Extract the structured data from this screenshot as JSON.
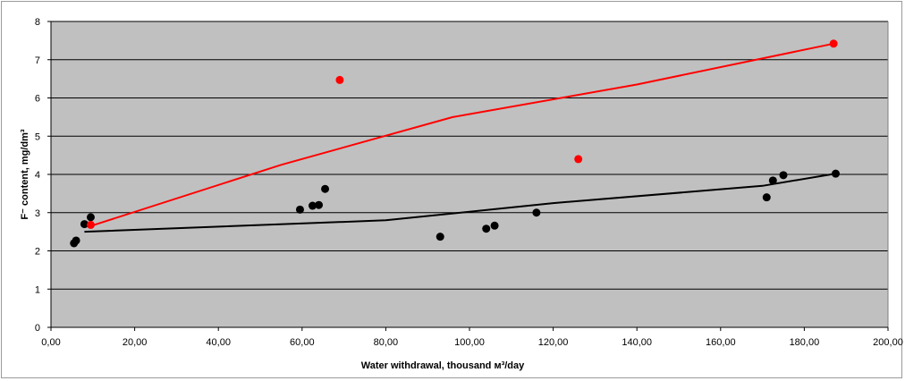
{
  "chart_data": {
    "type": "scatter",
    "title": "",
    "xlabel": "Water withdrawal, thousand м³/day",
    "ylabel": "F⁻ content, mg/dm³",
    "xlim": [
      0,
      200
    ],
    "ylim": [
      0,
      8
    ],
    "x_ticks": [
      "0,00",
      "20,00",
      "40,00",
      "60,00",
      "80,00",
      "100,00",
      "120,00",
      "140,00",
      "160,00",
      "180,00",
      "200,00"
    ],
    "y_ticks": [
      "0",
      "1",
      "2",
      "3",
      "4",
      "5",
      "6",
      "7",
      "8"
    ],
    "grid": "horizontal",
    "plot_background": "#c0c0c0",
    "legend": "none",
    "series": [
      {
        "color": "#000000",
        "kind": "scatter",
        "points": [
          [
            5.5,
            2.2
          ],
          [
            6.0,
            2.27
          ],
          [
            8.0,
            2.7
          ],
          [
            9.5,
            2.88
          ],
          [
            59.5,
            3.08
          ],
          [
            62.5,
            3.18
          ],
          [
            64.0,
            3.2
          ],
          [
            65.5,
            3.62
          ],
          [
            93.0,
            2.37
          ],
          [
            104.0,
            2.58
          ],
          [
            106.0,
            2.66
          ],
          [
            116.0,
            3.0
          ],
          [
            171.0,
            3.4
          ],
          [
            172.5,
            3.84
          ],
          [
            175.0,
            3.98
          ],
          [
            187.5,
            4.02
          ]
        ]
      },
      {
        "color": "#000000",
        "kind": "line",
        "points": [
          [
            8.0,
            2.5
          ],
          [
            80.0,
            2.8
          ],
          [
            120.0,
            3.25
          ],
          [
            170.0,
            3.7
          ],
          [
            187.5,
            4.02
          ]
        ]
      },
      {
        "color": "#ff0000",
        "kind": "scatter",
        "points": [
          [
            9.5,
            2.68
          ],
          [
            69.0,
            6.47
          ],
          [
            126.0,
            4.4
          ],
          [
            187.0,
            7.42
          ]
        ]
      },
      {
        "color": "#ff0000",
        "kind": "line",
        "points": [
          [
            9.5,
            2.65
          ],
          [
            55.0,
            4.25
          ],
          [
            96.0,
            5.5
          ],
          [
            140.0,
            6.35
          ],
          [
            187.0,
            7.42
          ]
        ]
      }
    ]
  }
}
